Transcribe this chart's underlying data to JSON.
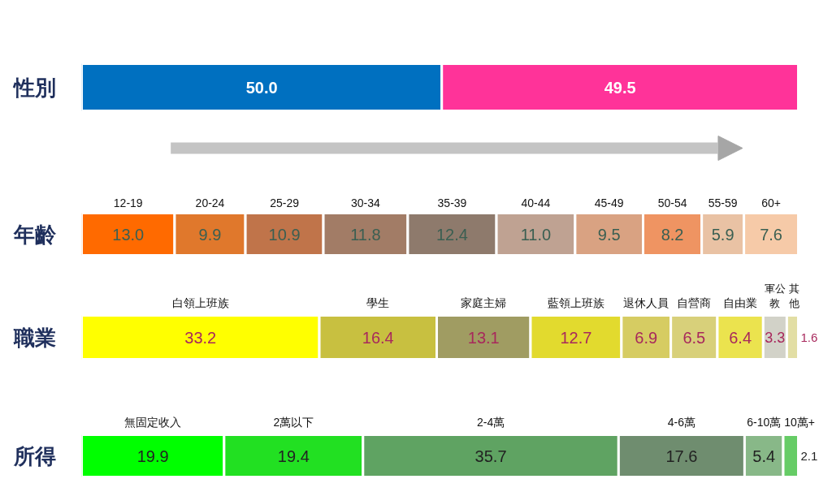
{
  "chart_data": [
    {
      "type": "bar",
      "orientation": "horizontal",
      "stacked": true,
      "categories": [
        "性別"
      ],
      "tick_labels": "y",
      "series": [
        {
          "color": "#0070c0",
          "values": [
            50.0
          ],
          "value_labels": [
            "50.0"
          ]
        },
        {
          "color": "#ff3399",
          "values": [
            49.5
          ],
          "value_labels": [
            "49.5"
          ]
        }
      ]
    },
    {
      "type": "bar",
      "orientation": "horizontal",
      "stacked": true,
      "categories": [
        "年齡"
      ],
      "tick_labels": "y",
      "series": [
        {
          "name": "12-19",
          "color": "#ff6a00",
          "values": [
            13.0
          ],
          "value_labels": [
            "13.0"
          ]
        },
        {
          "name": "20-24",
          "color": "#e0782c",
          "values": [
            9.9
          ],
          "value_labels": [
            "9.9"
          ]
        },
        {
          "name": "25-29",
          "color": "#c0744a",
          "values": [
            10.9
          ],
          "value_labels": [
            "10.9"
          ]
        },
        {
          "name": "30-34",
          "color": "#a27c66",
          "values": [
            11.8
          ],
          "value_labels": [
            "11.8"
          ]
        },
        {
          "name": "35-39",
          "color": "#8e7a6c",
          "values": [
            12.4
          ],
          "value_labels": [
            "12.4"
          ]
        },
        {
          "name": "40-44",
          "color": "#bfa292",
          "values": [
            11.0
          ],
          "value_labels": [
            "11.0"
          ]
        },
        {
          "name": "45-49",
          "color": "#d9a282",
          "values": [
            9.5
          ],
          "value_labels": [
            "9.5"
          ]
        },
        {
          "name": "50-54",
          "color": "#ef9462",
          "values": [
            8.2
          ],
          "value_labels": [
            "8.2"
          ]
        },
        {
          "name": "55-59",
          "color": "#e9c2a4",
          "values": [
            5.9
          ],
          "value_labels": [
            "5.9"
          ]
        },
        {
          "name": "60+",
          "color": "#f6caa8",
          "values": [
            7.6
          ],
          "value_labels": [
            "7.6"
          ]
        }
      ]
    },
    {
      "type": "bar",
      "orientation": "horizontal",
      "stacked": true,
      "categories": [
        "職業"
      ],
      "tick_labels": "y",
      "series": [
        {
          "name": "白領上班族",
          "color": "#ffff00",
          "values": [
            33.2
          ],
          "value_labels": [
            "33.2"
          ]
        },
        {
          "name": "學生",
          "color": "#c8c040",
          "values": [
            16.4
          ],
          "value_labels": [
            "16.4"
          ]
        },
        {
          "name": "家庭主婦",
          "color": "#a09c62",
          "values": [
            13.1
          ],
          "value_labels": [
            "13.1"
          ]
        },
        {
          "name": "藍領上班族",
          "color": "#e2da2e",
          "values": [
            12.7
          ],
          "value_labels": [
            "12.7"
          ]
        },
        {
          "name": "退休人員",
          "color": "#d6cc62",
          "values": [
            6.9
          ],
          "value_labels": [
            "6.9"
          ]
        },
        {
          "name": "自營商",
          "color": "#d8d07a",
          "values": [
            6.5
          ],
          "value_labels": [
            "6.5"
          ]
        },
        {
          "name": "自由業",
          "color": "#ebe34e",
          "values": [
            6.4
          ],
          "value_labels": [
            "6.4"
          ]
        },
        {
          "name": "軍公教",
          "color": "#d2d2c8",
          "values": [
            3.3
          ],
          "value_labels": [
            "3.3"
          ]
        },
        {
          "name": "其他",
          "color": "#e2dea4",
          "values": [
            1.6
          ],
          "value_labels": [
            "1.6"
          ]
        }
      ]
    },
    {
      "type": "bar",
      "orientation": "horizontal",
      "stacked": true,
      "categories": [
        "所得"
      ],
      "tick_labels": "y",
      "series": [
        {
          "name": "無固定收入",
          "color": "#00ff00",
          "values": [
            19.9
          ],
          "value_labels": [
            "19.9"
          ]
        },
        {
          "name": "2萬以下",
          "color": "#22e022",
          "values": [
            19.4
          ],
          "value_labels": [
            "19.4"
          ]
        },
        {
          "name": "2-4萬",
          "color": "#5fa362",
          "values": [
            35.7
          ],
          "value_labels": [
            "35.7"
          ]
        },
        {
          "name": "4-6萬",
          "color": "#6f8d6f",
          "values": [
            17.6
          ],
          "value_labels": [
            "17.6"
          ]
        },
        {
          "name": "6-10萬",
          "color": "#88b888",
          "values": [
            5.4
          ],
          "value_labels": [
            "5.4"
          ]
        },
        {
          "name": "10萬+",
          "color": "#66cc66",
          "values": [
            2.1
          ],
          "value_labels": [
            "2.1"
          ]
        }
      ]
    }
  ]
}
